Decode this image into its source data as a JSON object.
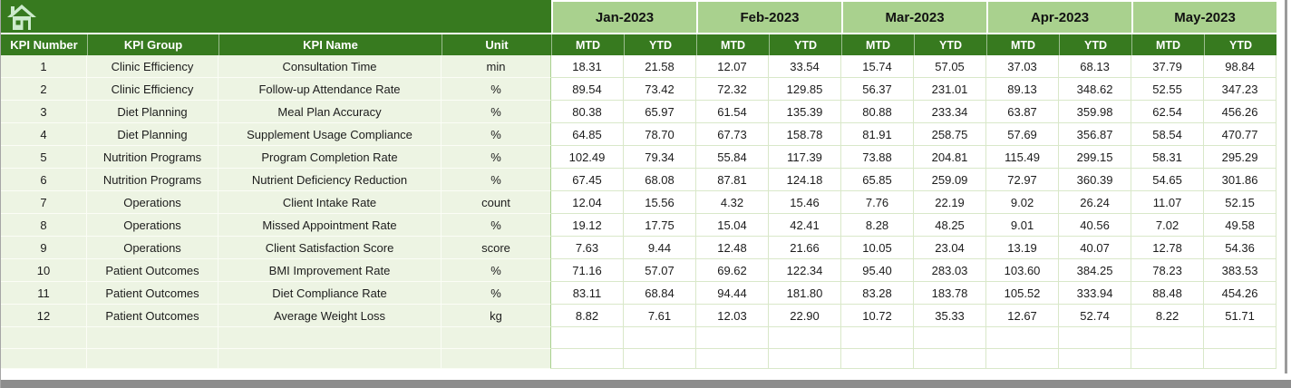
{
  "app": {
    "home_icon": "home-icon"
  },
  "months": [
    {
      "label": "Jan-2023"
    },
    {
      "label": "Feb-2023"
    },
    {
      "label": "Mar-2023"
    },
    {
      "label": "Apr-2023"
    },
    {
      "label": "May-2023"
    }
  ],
  "columns": {
    "kpi_number": "KPI Number",
    "kpi_group": "KPI Group",
    "kpi_name": "KPI Name",
    "unit": "Unit",
    "mtd": "MTD",
    "ytd": "YTD"
  },
  "rows": [
    {
      "number": "1",
      "group": "Clinic Efficiency",
      "name": "Consultation Time",
      "unit": "min",
      "values": [
        "18.31",
        "21.58",
        "12.07",
        "33.54",
        "15.74",
        "57.05",
        "37.03",
        "68.13",
        "37.79",
        "98.84"
      ]
    },
    {
      "number": "2",
      "group": "Clinic Efficiency",
      "name": "Follow-up Attendance Rate",
      "unit": "%",
      "values": [
        "89.54",
        "73.42",
        "72.32",
        "129.85",
        "56.37",
        "231.01",
        "89.13",
        "348.62",
        "52.55",
        "347.23"
      ]
    },
    {
      "number": "3",
      "group": "Diet Planning",
      "name": "Meal Plan Accuracy",
      "unit": "%",
      "values": [
        "80.38",
        "65.97",
        "61.54",
        "135.39",
        "80.88",
        "233.34",
        "63.87",
        "359.98",
        "62.54",
        "456.26"
      ]
    },
    {
      "number": "4",
      "group": "Diet Planning",
      "name": "Supplement Usage Compliance",
      "unit": "%",
      "values": [
        "64.85",
        "78.70",
        "67.73",
        "158.78",
        "81.91",
        "258.75",
        "57.69",
        "356.87",
        "58.54",
        "470.77"
      ]
    },
    {
      "number": "5",
      "group": "Nutrition Programs",
      "name": "Program Completion Rate",
      "unit": "%",
      "values": [
        "102.49",
        "79.34",
        "55.84",
        "117.39",
        "73.88",
        "204.81",
        "115.49",
        "299.15",
        "58.31",
        "295.29"
      ]
    },
    {
      "number": "6",
      "group": "Nutrition Programs",
      "name": "Nutrient Deficiency Reduction",
      "unit": "%",
      "values": [
        "67.45",
        "68.08",
        "87.81",
        "124.18",
        "65.85",
        "259.09",
        "72.97",
        "360.39",
        "54.65",
        "301.86"
      ]
    },
    {
      "number": "7",
      "group": "Operations",
      "name": "Client Intake Rate",
      "unit": "count",
      "values": [
        "12.04",
        "15.56",
        "4.32",
        "15.46",
        "7.76",
        "22.19",
        "9.02",
        "26.24",
        "11.07",
        "52.15"
      ]
    },
    {
      "number": "8",
      "group": "Operations",
      "name": "Missed Appointment Rate",
      "unit": "%",
      "values": [
        "19.12",
        "17.75",
        "15.04",
        "42.41",
        "8.28",
        "48.25",
        "9.01",
        "40.56",
        "7.02",
        "49.58"
      ]
    },
    {
      "number": "9",
      "group": "Operations",
      "name": "Client Satisfaction Score",
      "unit": "score",
      "values": [
        "7.63",
        "9.44",
        "12.48",
        "21.66",
        "10.05",
        "23.04",
        "13.19",
        "40.07",
        "12.78",
        "54.36"
      ]
    },
    {
      "number": "10",
      "group": "Patient Outcomes",
      "name": "BMI Improvement Rate",
      "unit": "%",
      "values": [
        "71.16",
        "57.07",
        "69.62",
        "122.34",
        "95.40",
        "283.03",
        "103.60",
        "384.25",
        "78.23",
        "383.53"
      ]
    },
    {
      "number": "11",
      "group": "Patient Outcomes",
      "name": "Diet Compliance Rate",
      "unit": "%",
      "values": [
        "83.11",
        "68.84",
        "94.44",
        "181.80",
        "83.28",
        "183.78",
        "105.52",
        "333.94",
        "88.48",
        "454.26"
      ]
    },
    {
      "number": "12",
      "group": "Patient Outcomes",
      "name": "Average Weight Loss",
      "unit": "kg",
      "values": [
        "8.82",
        "7.61",
        "12.03",
        "22.90",
        "10.72",
        "35.33",
        "12.67",
        "52.74",
        "8.22",
        "51.71"
      ]
    }
  ],
  "empty_rows": 2,
  "colors": {
    "header_dark_green": "#377A1F",
    "month_light_green": "#A9D18E",
    "row_pale_green": "#EDF4E3",
    "grid_green": "#D9E8C9",
    "chrome_gray": "#8d8d8d",
    "header_text": "#FFFFFF",
    "body_text": "#1c1c1c"
  }
}
